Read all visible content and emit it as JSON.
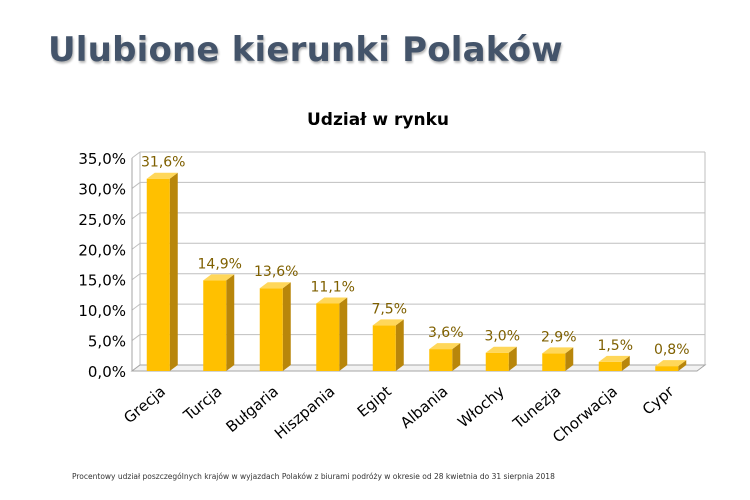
{
  "slide": {
    "title": "Ulubione kierunki Polaków",
    "footnote": "Procentowy udział poszczególnych krajów w wyjazdach Polaków z biurami podróży w okresie od 28 kwietnia do 31 sierpnia 2018"
  },
  "chart_data": {
    "type": "bar",
    "title": "Udział w rynku",
    "xlabel": "",
    "ylabel": "",
    "categories": [
      "Grecja",
      "Turcja",
      "Bułgaria",
      "Hiszpania",
      "Egipt",
      "Albania",
      "Włochy",
      "Tunezja",
      "Chorwacja",
      "Cypr"
    ],
    "series": [
      {
        "values": [
          31.6,
          14.9,
          13.6,
          11.1,
          7.5,
          3.6,
          3.0,
          2.9,
          1.5,
          0.8
        ],
        "value_labels": [
          "31,6%",
          "14,9%",
          "13,6%",
          "11,1%",
          "7,5%",
          "3,6%",
          "3,0%",
          "2,9%",
          "1,5%",
          "0,8%"
        ],
        "color": "#ffc000"
      }
    ],
    "ylim": [
      0,
      35
    ],
    "yticks": [
      0,
      5,
      10,
      15,
      20,
      25,
      30,
      35
    ],
    "ytick_labels": [
      "0,0%",
      "5,0%",
      "10,0%",
      "15,0%",
      "20,0%",
      "25,0%",
      "30,0%",
      "35,0%"
    ],
    "grid": true,
    "legend": "none",
    "colors": {
      "bar_front": "#ffc000",
      "bar_side": "#b8860b",
      "bar_top": "#ffd75a",
      "value_label": "#7f6000",
      "grid": "#bfbfbf"
    }
  }
}
